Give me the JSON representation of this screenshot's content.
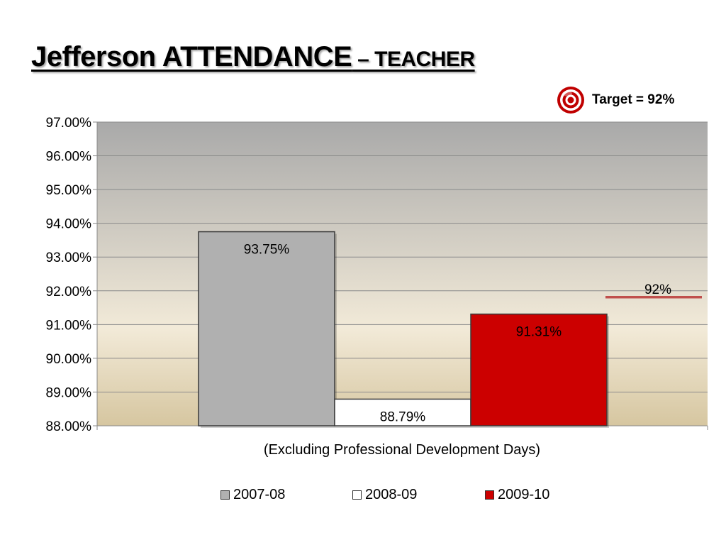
{
  "page": {
    "title_main": "Jefferson ATTENDANCE",
    "title_sub": " – TEACHER",
    "target_label": "Target = 92%"
  },
  "chart_data": {
    "type": "bar",
    "categories": [
      "2007-08",
      "2008-09",
      "2009-10"
    ],
    "series": [
      {
        "name": "2007-08",
        "value": 93.75,
        "label": "93.75%",
        "color": "#b0b0b0"
      },
      {
        "name": "2008-09",
        "value": 88.79,
        "label": "88.79%",
        "color": "#ffffff"
      },
      {
        "name": "2009-10",
        "value": 91.31,
        "label": "91.31%",
        "color": "#cc0000"
      }
    ],
    "xlabel": "(Excluding Professional Development Days)",
    "ylabel": "",
    "ylim": [
      88,
      97
    ],
    "yticks": [
      "88.00%",
      "89.00%",
      "90.00%",
      "91.00%",
      "92.00%",
      "93.00%",
      "94.00%",
      "95.00%",
      "96.00%",
      "97.00%"
    ],
    "target": {
      "value": 92,
      "label": "92%",
      "color": "#c0504d"
    },
    "grid": true,
    "legend_position": "bottom"
  }
}
